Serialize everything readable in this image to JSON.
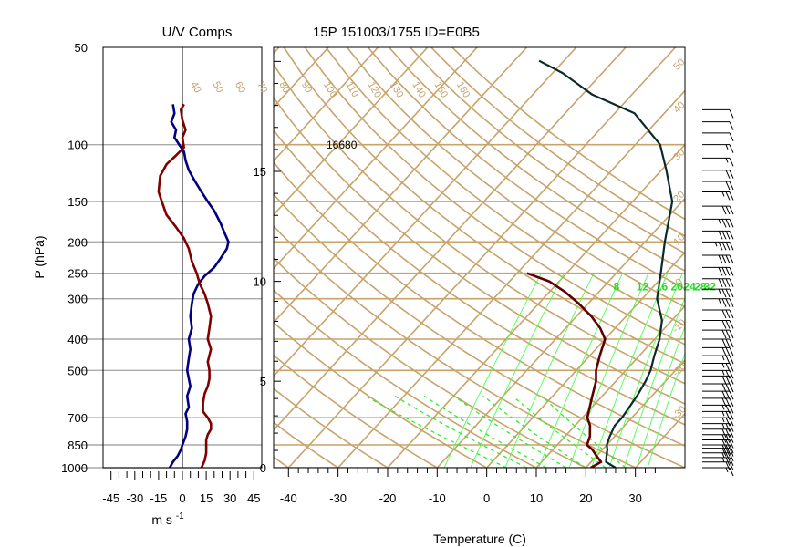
{
  "chart_data": [
    {
      "type": "line",
      "panel": "uv",
      "title": "U/V Comps",
      "xlabel": "m s",
      "xlabel_sup": "-1",
      "ylabel": "P (hPa)",
      "y_scale": "log",
      "y_reversed": true,
      "xlim": [
        -50,
        50
      ],
      "ylim": [
        1000,
        50
      ],
      "x_tick_labels": [
        "-45",
        "-30",
        "-15",
        "0",
        "15",
        "30",
        "45"
      ],
      "x_ticks": [
        -45,
        -30,
        -15,
        0,
        15,
        30,
        45
      ],
      "y_tick_labels": [
        "50",
        "100",
        "150",
        "200",
        "250",
        "300",
        "400",
        "500",
        "700",
        "850",
        "1000"
      ],
      "y_ticks": [
        50,
        100,
        150,
        200,
        250,
        300,
        400,
        500,
        700,
        850,
        1000
      ],
      "grid": "horizontal at labeled pressures",
      "series": [
        {
          "color": "#000080",
          "points": [
            [
              -8,
              1000
            ],
            [
              -6,
              960
            ],
            [
              -3,
              920
            ],
            [
              -1,
              880
            ],
            [
              0,
              850
            ],
            [
              2,
              800
            ],
            [
              3,
              760
            ],
            [
              3,
              720
            ],
            [
              2,
              680
            ],
            [
              4,
              650
            ],
            [
              3,
              600
            ],
            [
              5,
              560
            ],
            [
              4,
              530
            ],
            [
              3,
              500
            ],
            [
              4,
              460
            ],
            [
              5,
              430
            ],
            [
              4,
              400
            ],
            [
              6,
              370
            ],
            [
              5,
              340
            ],
            [
              6,
              310
            ],
            [
              7,
              290
            ],
            [
              10,
              270
            ],
            [
              14,
              255
            ],
            [
              20,
              240
            ],
            [
              24,
              225
            ],
            [
              28,
              210
            ],
            [
              29,
              200
            ],
            [
              27,
              190
            ],
            [
              24,
              175
            ],
            [
              20,
              160
            ],
            [
              16,
              150
            ],
            [
              12,
              140
            ],
            [
              8,
              130
            ],
            [
              4,
              120
            ],
            [
              2,
              112
            ],
            [
              1,
              105
            ],
            [
              -2,
              100
            ],
            [
              -5,
              95
            ],
            [
              -4,
              90
            ],
            [
              -7,
              85
            ],
            [
              -5,
              80
            ],
            [
              -6,
              75
            ]
          ]
        },
        {
          "color": "#800000",
          "points": [
            [
              12,
              1000
            ],
            [
              14,
              950
            ],
            [
              15,
              900
            ],
            [
              15,
              860
            ],
            [
              15,
              820
            ],
            [
              16,
              790
            ],
            [
              18,
              760
            ],
            [
              18,
              730
            ],
            [
              16,
              700
            ],
            [
              13,
              670
            ],
            [
              13,
              630
            ],
            [
              14,
              590
            ],
            [
              16,
              560
            ],
            [
              17,
              530
            ],
            [
              17,
              500
            ],
            [
              16,
              470
            ],
            [
              18,
              430
            ],
            [
              16,
              400
            ],
            [
              17,
              370
            ],
            [
              18,
              340
            ],
            [
              16,
              310
            ],
            [
              14,
              290
            ],
            [
              11,
              270
            ],
            [
              9,
              250
            ],
            [
              6,
              230
            ],
            [
              4,
              210
            ],
            [
              1,
              195
            ],
            [
              -4,
              180
            ],
            [
              -10,
              165
            ],
            [
              -13,
              150
            ],
            [
              -15,
              140
            ],
            [
              -14,
              125
            ],
            [
              -10,
              115
            ],
            [
              -4,
              108
            ],
            [
              1,
              102
            ],
            [
              0,
              95
            ],
            [
              2,
              90
            ],
            [
              0,
              84
            ],
            [
              -1,
              78
            ],
            [
              1,
              75
            ]
          ]
        }
      ]
    },
    {
      "type": "line",
      "panel": "skewt",
      "title": "15P 151003/1755 ID=E0B5",
      "xlabel": "Temperature (C)",
      "y_scale": "log",
      "y_reversed": true,
      "xlim": [
        -43,
        40
      ],
      "ylim": [
        1000,
        50
      ],
      "skew_deg_per_decade": 60,
      "x_tick_labels": [
        "-40",
        "-30",
        "-20",
        "-10",
        "0",
        "10",
        "20",
        "30"
      ],
      "x_ticks": [
        -40,
        -30,
        -20,
        -10,
        0,
        10,
        20,
        30
      ],
      "y_tick_labels": [
        "0",
        "5",
        "10",
        "15"
      ],
      "height_km_ticks": [
        0,
        5,
        10,
        15
      ],
      "height_km_to_p": [
        [
          0,
          1000
        ],
        [
          5,
          540
        ],
        [
          10,
          265
        ],
        [
          15,
          121
        ]
      ],
      "isobars": [
        1000,
        850,
        700,
        500,
        400,
        300,
        250,
        200,
        150,
        100
      ],
      "isotherm_labels": [
        "-40",
        "-30",
        "-20",
        "-10",
        "0",
        "10",
        "20",
        "30",
        "40",
        "50"
      ],
      "dry_adiabat_labels": [
        "40",
        "50",
        "60",
        "70",
        "80",
        "90",
        "100",
        "110",
        "120",
        "130",
        "140",
        "150",
        "160"
      ],
      "mixing_ratio_labels": [
        "8",
        "12",
        "16",
        "20",
        "24",
        "28",
        "32"
      ],
      "annotations": [
        "16680"
      ],
      "series": [
        {
          "color": "#5c0000",
          "points": [
            [
              21,
              1000
            ],
            [
              22,
              960
            ],
            [
              20,
              920
            ],
            [
              18,
              880
            ],
            [
              16,
              850
            ],
            [
              15,
              800
            ],
            [
              13,
              740
            ],
            [
              11,
              700
            ],
            [
              8,
              600
            ],
            [
              6,
              540
            ],
            [
              4,
              500
            ],
            [
              2,
              450
            ],
            [
              0,
              400
            ],
            [
              -3,
              370
            ],
            [
              -7,
              340
            ],
            [
              -12,
              310
            ],
            [
              -17,
              285
            ],
            [
              -22,
              265
            ],
            [
              -28,
              250
            ]
          ]
        },
        {
          "color": "#0a2a2a",
          "points": [
            [
              26,
              1000
            ],
            [
              23,
              960
            ],
            [
              22,
              920
            ],
            [
              21,
              880
            ],
            [
              20,
              850
            ],
            [
              19,
              800
            ],
            [
              18,
              740
            ],
            [
              18,
              700
            ],
            [
              17,
              600
            ],
            [
              16,
              540
            ],
            [
              15,
              500
            ],
            [
              13,
              450
            ],
            [
              11,
              400
            ],
            [
              8,
              350
            ],
            [
              3,
              300
            ],
            [
              -1,
              250
            ],
            [
              -6,
              200
            ],
            [
              -12,
              150
            ],
            [
              -19,
              120
            ],
            [
              -25,
              100
            ],
            [
              -36,
              80
            ],
            [
              -48,
              70
            ],
            [
              -58,
              60
            ],
            [
              -65,
              55
            ]
          ]
        }
      ]
    },
    {
      "type": "scatter",
      "panel": "wind_barbs",
      "p_levels": [
        1000,
        960,
        930,
        900,
        870,
        850,
        820,
        790,
        760,
        730,
        700,
        670,
        640,
        610,
        580,
        550,
        520,
        500,
        475,
        450,
        425,
        400,
        375,
        350,
        325,
        300,
        280,
        260,
        240,
        220,
        200,
        185,
        170,
        155,
        140,
        130,
        120,
        110,
        100,
        92,
        85,
        78
      ],
      "speed_kt": [
        15,
        20,
        25,
        25,
        30,
        30,
        30,
        30,
        30,
        25,
        25,
        25,
        25,
        30,
        30,
        30,
        30,
        25,
        25,
        25,
        30,
        30,
        30,
        30,
        30,
        35,
        35,
        40,
        40,
        40,
        45,
        40,
        35,
        30,
        25,
        20,
        20,
        15,
        15,
        10,
        10,
        10
      ]
    }
  ]
}
